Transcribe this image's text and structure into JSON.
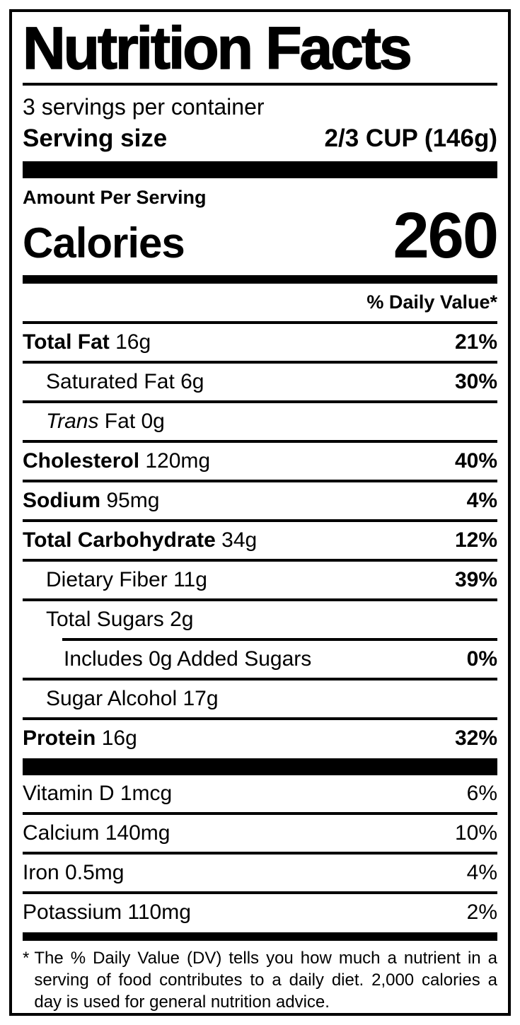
{
  "colors": {
    "ink": "#000000",
    "paper": "#ffffff"
  },
  "label": {
    "title": "Nutrition Facts",
    "servings_per_container": "3 servings per container",
    "serving_size": {
      "label": "Serving size",
      "value": "2/3 CUP (146g)"
    },
    "amount_per_serving": "Amount Per Serving",
    "calories": {
      "label": "Calories",
      "value": "260"
    },
    "daily_value_header": "% Daily Value*",
    "nutrients": [
      {
        "name": "Total Fat",
        "amount": "16g",
        "dv": "21%"
      },
      {
        "name": "Saturated Fat",
        "amount": "6g",
        "dv": "30%"
      },
      {
        "name": "Trans",
        "amount": " Fat 0g",
        "dv": ""
      },
      {
        "name": "Cholesterol",
        "amount": "120mg",
        "dv": "40%"
      },
      {
        "name": "Sodium",
        "amount": "95mg",
        "dv": "4%"
      },
      {
        "name": "Total Carbohydrate",
        "amount": "34g",
        "dv": "12%"
      },
      {
        "name": "Dietary Fiber",
        "amount": "11g",
        "dv": "39%"
      },
      {
        "name": "Total Sugars",
        "amount": "2g",
        "dv": ""
      },
      {
        "name": "Includes 0g Added Sugars",
        "amount": "",
        "dv": "0%"
      },
      {
        "name": "Sugar Alcohol",
        "amount": "17g",
        "dv": ""
      },
      {
        "name": "Protein",
        "amount": "16g",
        "dv": "32%"
      }
    ],
    "vitamins": [
      {
        "name": "Vitamin D",
        "amount": "1mcg",
        "dv": "6%"
      },
      {
        "name": "Calcium",
        "amount": "140mg",
        "dv": "10%"
      },
      {
        "name": "Iron",
        "amount": "0.5mg",
        "dv": "4%"
      },
      {
        "name": "Potassium",
        "amount": "110mg",
        "dv": "2%"
      }
    ],
    "footnote": {
      "marker": "*",
      "text": "The % Daily Value (DV) tells you how much a nutrient in a serving of food contributes to a daily diet. 2,000 calories a day is used for general nutrition advice."
    }
  }
}
